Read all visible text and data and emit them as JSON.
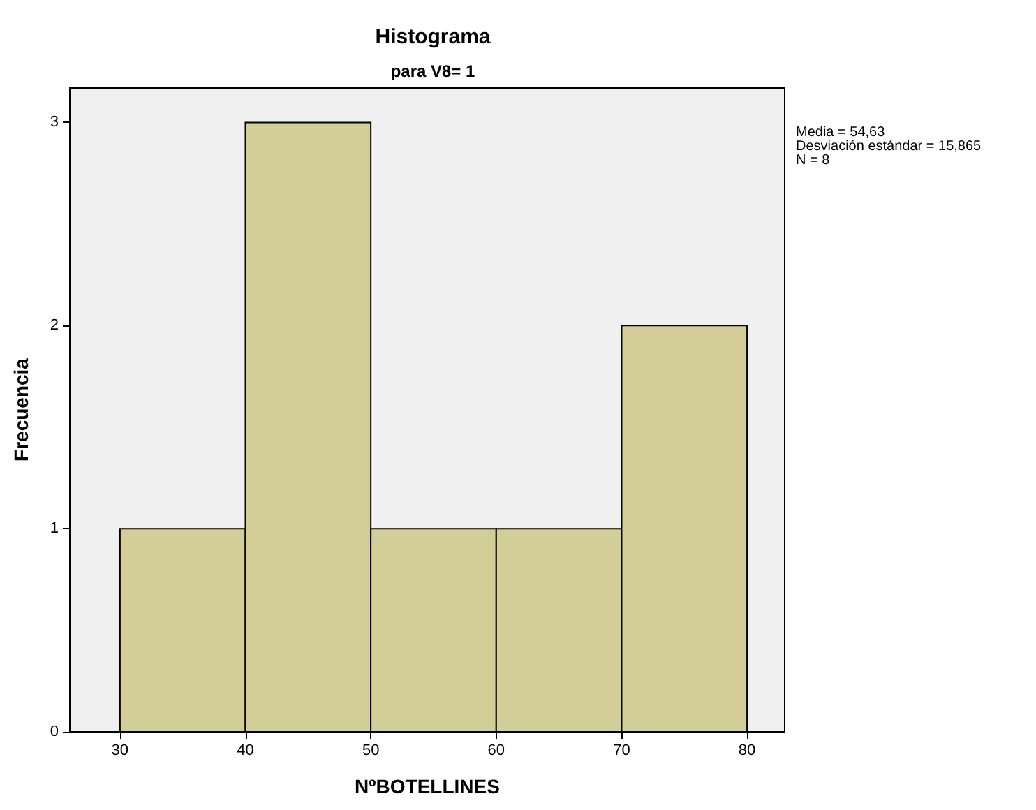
{
  "chart_data": {
    "type": "histogram",
    "title": "Histograma",
    "subtitle": "para V8= 1",
    "xlabel": "NºBOTELLINES",
    "ylabel": "Frecuencia",
    "bins": [
      30,
      40,
      50,
      60,
      70,
      80
    ],
    "values": [
      1,
      3,
      1,
      1,
      2
    ],
    "color": "#d3ce97",
    "xlim": [
      26,
      83
    ],
    "ylim": [
      0,
      3.17
    ],
    "xticks": [
      30,
      40,
      50,
      60,
      70,
      80
    ],
    "yticks": [
      0,
      1,
      2,
      3
    ],
    "grid": false,
    "annotations": [
      "Media = 54,63",
      "Desviación estándar = 15,865",
      "N = 8"
    ]
  }
}
